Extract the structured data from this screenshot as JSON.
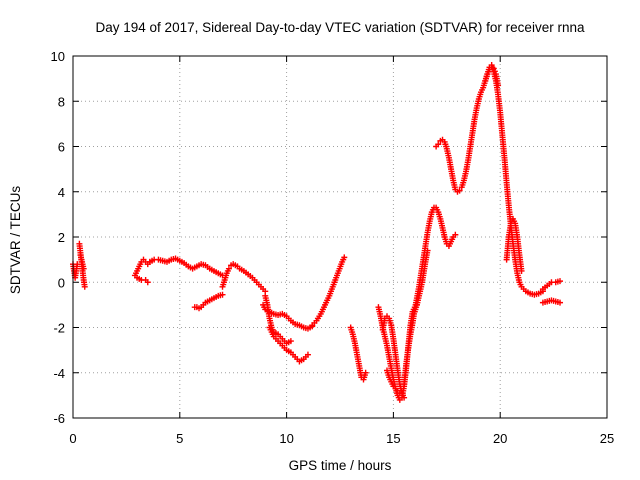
{
  "chart_data": {
    "type": "scatter",
    "title": "Day 194 of 2017, Sidereal Day-to-day VTEC variation (SDTVAR) for receiver rnna",
    "xlabel": "GPS time / hours",
    "ylabel": "SDTVAR / TECUs",
    "xlim": [
      0,
      25
    ],
    "ylim": [
      -6,
      10
    ],
    "xticks": [
      "0",
      "5",
      "10",
      "15",
      "20",
      "25"
    ],
    "yticks": [
      "-6",
      "-4",
      "-2",
      "0",
      "2",
      "4",
      "6",
      "8",
      "10"
    ],
    "grid": true,
    "marker": "plus",
    "color": "#ff0000",
    "segments": [
      {
        "x": [
          0.0,
          0.05,
          0.1,
          0.15,
          0.2
        ],
        "y": [
          0.8,
          0.5,
          0.2,
          0.5,
          0.8
        ]
      },
      {
        "x": [
          0.3,
          0.35,
          0.4,
          0.45,
          0.5,
          0.55
        ],
        "y": [
          1.7,
          1.3,
          0.9,
          0.5,
          0.1,
          -0.2
        ]
      },
      {
        "x": [
          0.35,
          0.4,
          0.45,
          0.5
        ],
        "y": [
          1.2,
          1.0,
          0.8,
          0.6
        ]
      },
      {
        "x": [
          2.9,
          3.0,
          3.1,
          3.2,
          3.3,
          3.4,
          3.5,
          3.6
        ],
        "y": [
          0.3,
          0.5,
          0.7,
          0.9,
          1.0,
          0.9,
          0.8,
          0.9
        ]
      },
      {
        "x": [
          3.0,
          3.2,
          3.4,
          3.5
        ],
        "y": [
          0.2,
          0.1,
          0.1,
          0.0
        ]
      },
      {
        "x": [
          3.6,
          3.8,
          4.0,
          4.2,
          4.4,
          4.6,
          4.8,
          5.0,
          5.2,
          5.4,
          5.6,
          5.8,
          6.0,
          6.2,
          6.4,
          6.6,
          6.8,
          7.0
        ],
        "y": [
          0.9,
          1.0,
          1.0,
          0.95,
          0.9,
          1.0,
          1.05,
          0.95,
          0.85,
          0.7,
          0.6,
          0.7,
          0.8,
          0.75,
          0.6,
          0.5,
          0.4,
          0.3
        ]
      },
      {
        "x": [
          5.7,
          5.8,
          5.9,
          6.0,
          6.1,
          6.2,
          6.4,
          6.6,
          6.8,
          7.0
        ],
        "y": [
          -1.1,
          -1.1,
          -1.15,
          -1.1,
          -1.0,
          -0.9,
          -0.8,
          -0.7,
          -0.6,
          -0.55
        ]
      },
      {
        "x": [
          7.0,
          7.1,
          7.2,
          7.3,
          7.4,
          7.5,
          7.6,
          7.7,
          7.8,
          8.0,
          8.2,
          8.4,
          8.6,
          8.8,
          9.0
        ],
        "y": [
          -0.2,
          0.1,
          0.4,
          0.6,
          0.75,
          0.8,
          0.75,
          0.7,
          0.6,
          0.5,
          0.35,
          0.2,
          0.0,
          -0.2,
          -0.4
        ]
      },
      {
        "x": [
          8.9,
          9.0,
          9.2,
          9.4,
          9.6,
          9.8,
          10.0,
          10.2,
          10.4,
          10.6,
          10.8,
          11.0,
          11.2
        ],
        "y": [
          -1.0,
          -1.2,
          -1.3,
          -1.4,
          -1.45,
          -1.4,
          -1.5,
          -1.7,
          -1.85,
          -1.9,
          -2.0,
          -2.05,
          -1.95
        ]
      },
      {
        "x": [
          9.0,
          9.1,
          9.2,
          9.3,
          9.4,
          9.6,
          9.8,
          10.0,
          10.2
        ],
        "y": [
          -0.6,
          -1.0,
          -1.6,
          -2.0,
          -2.2,
          -2.3,
          -2.5,
          -2.7,
          -2.6
        ]
      },
      {
        "x": [
          9.2,
          9.4,
          9.6,
          9.8,
          10.0,
          10.2,
          10.4,
          10.6,
          10.8,
          11.0
        ],
        "y": [
          -2.0,
          -2.4,
          -2.6,
          -2.8,
          -3.0,
          -3.1,
          -3.3,
          -3.5,
          -3.4,
          -3.2
        ]
      },
      {
        "x": [
          11.2,
          11.4,
          11.6,
          11.8,
          12.0,
          12.2,
          12.4,
          12.6,
          12.7
        ],
        "y": [
          -1.9,
          -1.7,
          -1.4,
          -1.0,
          -0.6,
          -0.1,
          0.4,
          0.9,
          1.1
        ]
      },
      {
        "x": [
          13.0,
          13.1,
          13.2,
          13.3,
          13.4,
          13.5,
          13.6,
          13.7
        ],
        "y": [
          -2.0,
          -2.3,
          -2.7,
          -3.2,
          -3.7,
          -4.2,
          -4.3,
          -4.0
        ]
      },
      {
        "x": [
          14.3,
          14.4,
          14.5,
          14.6,
          14.7,
          14.8,
          14.9,
          15.0,
          15.1,
          15.2,
          15.3,
          15.4,
          15.5,
          15.6,
          15.7,
          15.8,
          15.9,
          16.0,
          16.1
        ],
        "y": [
          -1.1,
          -1.5,
          -2.0,
          -2.4,
          -2.8,
          -3.3,
          -3.8,
          -4.3,
          -4.7,
          -5.0,
          -5.2,
          -5.1,
          -4.6,
          -3.8,
          -2.8,
          -1.9,
          -1.3,
          -1.1,
          -1.0
        ]
      },
      {
        "x": [
          14.5,
          14.6,
          14.7,
          14.8,
          14.9,
          15.0,
          15.1,
          15.2,
          15.3,
          15.4,
          15.5
        ],
        "y": [
          -2.1,
          -1.6,
          -1.5,
          -1.6,
          -1.9,
          -2.5,
          -3.2,
          -3.9,
          -4.5,
          -4.9,
          -5.1
        ]
      },
      {
        "x": [
          14.7,
          14.8,
          14.9,
          15.0,
          15.1,
          15.2,
          15.3
        ],
        "y": [
          -3.9,
          -4.2,
          -4.4,
          -4.6,
          -4.7,
          -4.8,
          -4.9
        ]
      },
      {
        "x": [
          15.5,
          15.6,
          15.7,
          15.8,
          15.9,
          16.0,
          16.1,
          16.2,
          16.3,
          16.4,
          16.5,
          16.6,
          16.7,
          16.8,
          16.9,
          17.0,
          17.1,
          17.2,
          17.3,
          17.4,
          17.5,
          17.6,
          17.7,
          17.8,
          17.9
        ],
        "y": [
          -4.5,
          -3.6,
          -2.9,
          -2.3,
          -1.8,
          -1.2,
          -0.7,
          -0.2,
          0.4,
          1.0,
          1.6,
          2.2,
          2.7,
          3.1,
          3.3,
          3.3,
          3.1,
          2.8,
          2.4,
          2.0,
          1.7,
          1.6,
          1.8,
          2.0,
          2.1
        ]
      },
      {
        "x": [
          16.0,
          16.1,
          16.2,
          16.3,
          16.4,
          16.5,
          16.6
        ],
        "y": [
          -1.3,
          -1.0,
          -0.6,
          -0.2,
          0.3,
          0.9,
          1.4
        ]
      },
      {
        "x": [
          17.0,
          17.1,
          17.2,
          17.3,
          17.4,
          17.5,
          17.6,
          17.7,
          17.8,
          17.9,
          18.0,
          18.1,
          18.2,
          18.3,
          18.4,
          18.5,
          18.6,
          18.7,
          18.8,
          18.9,
          19.0,
          19.1,
          19.2,
          19.3,
          19.4,
          19.5,
          19.6,
          19.7,
          19.8,
          19.9
        ],
        "y": [
          6.0,
          6.1,
          6.25,
          6.3,
          6.2,
          5.9,
          5.5,
          5.0,
          4.5,
          4.1,
          4.0,
          4.05,
          4.2,
          4.5,
          4.9,
          5.4,
          6.0,
          6.6,
          7.2,
          7.7,
          8.1,
          8.4,
          8.6,
          8.9,
          9.2,
          9.4,
          9.5,
          9.45,
          9.2,
          8.7
        ]
      },
      {
        "x": [
          19.3,
          19.4,
          19.5,
          19.6,
          19.7,
          19.8,
          19.9,
          20.0,
          20.1,
          20.2,
          20.3,
          20.4,
          20.5,
          20.6,
          20.7,
          20.8,
          20.9,
          21.0,
          21.2,
          21.4,
          21.6,
          21.8,
          22.0
        ],
        "y": [
          8.9,
          9.2,
          9.5,
          9.6,
          9.3,
          8.9,
          8.3,
          7.5,
          6.5,
          5.5,
          4.4,
          3.4,
          2.5,
          1.7,
          1.0,
          0.4,
          0.0,
          -0.2,
          -0.4,
          -0.5,
          -0.55,
          -0.5,
          -0.4
        ]
      },
      {
        "x": [
          20.3,
          20.4,
          20.5,
          20.6,
          20.7,
          20.8,
          20.9,
          21.0
        ],
        "y": [
          1.0,
          2.0,
          2.6,
          2.8,
          2.6,
          2.0,
          1.2,
          0.5
        ]
      },
      {
        "x": [
          22.0,
          22.2,
          22.4,
          22.6,
          22.8
        ],
        "y": [
          -0.3,
          -0.15,
          0.0,
          0.0,
          0.05
        ]
      },
      {
        "x": [
          22.0,
          22.2,
          22.4,
          22.6,
          22.8
        ],
        "y": [
          -0.9,
          -0.85,
          -0.8,
          -0.85,
          -0.9
        ]
      }
    ]
  }
}
